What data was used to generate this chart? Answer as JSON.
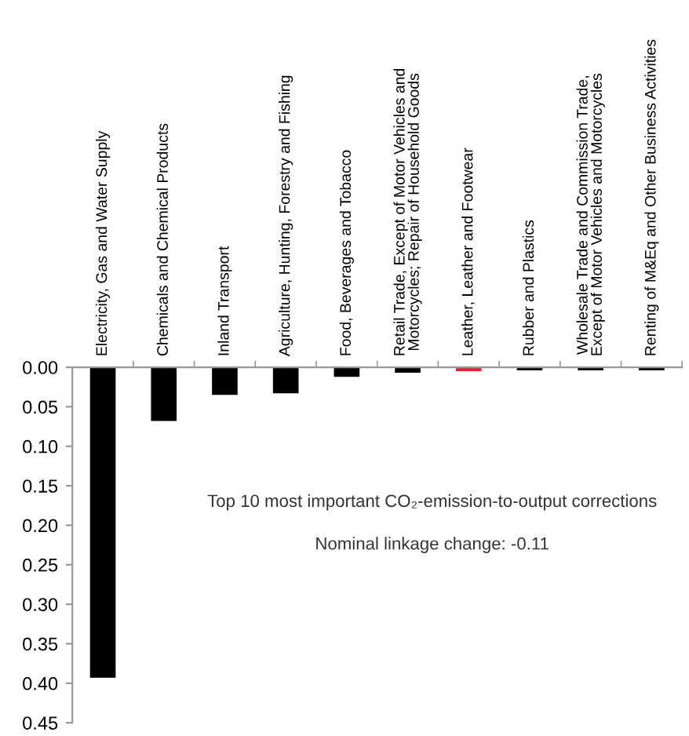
{
  "chart_data": {
    "type": "bar",
    "categories": [
      "Electricity, Gas and Water Supply",
      "Chemicals and Chemical Products",
      "Inland Transport",
      "Agriculture, Hunting, Forestry and Fishing",
      "Food, Beverages and Tobacco",
      "Retail Trade, Except of Motor Vehicles and\nMotorcycles; Repair of Household Goods",
      "Leather, Leather and Footwear",
      "Rubber and Plastics",
      "Wholesale Trade and Commission Trade,\nExcept of Motor Vehicles and Motorcycles",
      "Renting of M&Eq and Other Business Activities"
    ],
    "values": [
      0.393,
      0.068,
      0.035,
      0.033,
      0.012,
      0.007,
      0.005,
      0.004,
      0.004,
      0.004
    ],
    "colors": [
      "#000000",
      "#000000",
      "#000000",
      "#000000",
      "#000000",
      "#000000",
      "#e8202a",
      "#000000",
      "#000000",
      "#000000"
    ],
    "ylim": [
      0.45,
      0.0
    ],
    "yticks": [
      {
        "value": 0.0,
        "label": "0.00"
      },
      {
        "value": 0.05,
        "label": "0.05"
      },
      {
        "value": 0.1,
        "label": "0.10"
      },
      {
        "value": 0.15,
        "label": "0.15"
      },
      {
        "value": 0.2,
        "label": "0.20"
      },
      {
        "value": 0.25,
        "label": "0.25"
      },
      {
        "value": 0.3,
        "label": "0.30"
      },
      {
        "value": 0.35,
        "label": "0.35"
      },
      {
        "value": 0.4,
        "label": "0.40"
      },
      {
        "value": 0.45,
        "label": "0.45"
      }
    ],
    "annotations": [
      "Top 10 most important CO₂-emission-to-output corrections",
      "Nominal linkage change: -0.11"
    ],
    "grid": false,
    "legend": false
  }
}
